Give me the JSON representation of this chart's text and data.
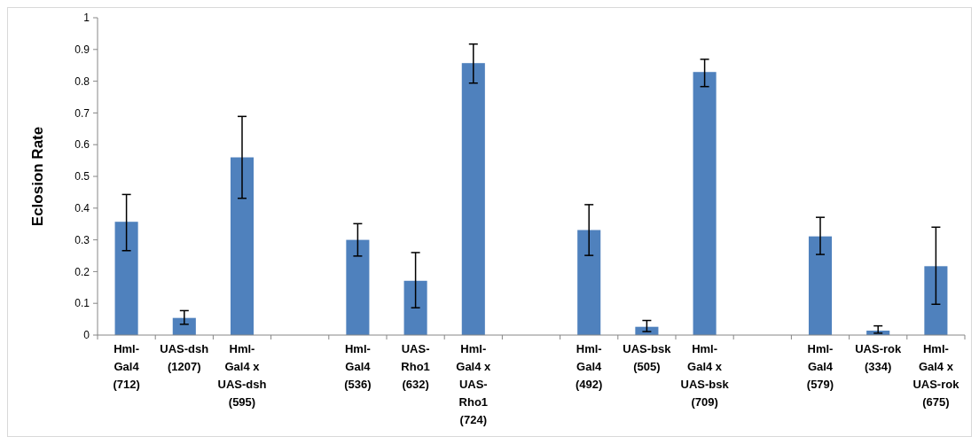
{
  "chart_data": {
    "type": "bar",
    "ylabel": "Eclosion Rate",
    "categories": [
      "Hml-\nGal4\n(712)",
      "UAS-dsh\n(1207)",
      "Hml-\nGal4 x\nUAS-dsh\n(595)",
      null,
      "Hml-\nGal4\n(536)",
      "UAS-\nRho1\n(632)",
      "Hml-\nGal4 x\nUAS-\nRho1\n(724)",
      null,
      "Hml-\nGal4\n(492)",
      "UAS-bsk\n(505)",
      "Hml-\nGal4 x\nUAS-bsk\n(709)",
      null,
      "Hml-\nGal4\n(579)",
      "UAS-rok\n(334)",
      "Hml-\nGal4 x\nUAS-rok\n(675)"
    ],
    "values": [
      0.357,
      0.054,
      0.56,
      null,
      0.3,
      0.171,
      0.857,
      null,
      0.331,
      0.026,
      0.829,
      null,
      0.311,
      0.014,
      0.217
    ],
    "errors": [
      [
        0.266,
        0.443
      ],
      [
        0.034,
        0.077
      ],
      [
        0.431,
        0.689
      ],
      null,
      [
        0.249,
        0.351
      ],
      [
        0.086,
        0.26
      ],
      [
        0.794,
        0.917
      ],
      null,
      [
        0.251,
        0.411
      ],
      [
        0.011,
        0.046
      ],
      [
        0.783,
        0.869
      ],
      null,
      [
        0.254,
        0.371
      ],
      [
        0.006,
        0.029
      ],
      [
        0.097,
        0.34
      ]
    ],
    "color": "#4f81bd",
    "ylim": [
      0,
      1
    ],
    "yticks": [
      0,
      0.1,
      0.2,
      0.3,
      0.4,
      0.5,
      0.6,
      0.7,
      0.8,
      0.9,
      1
    ],
    "grid": false
  }
}
